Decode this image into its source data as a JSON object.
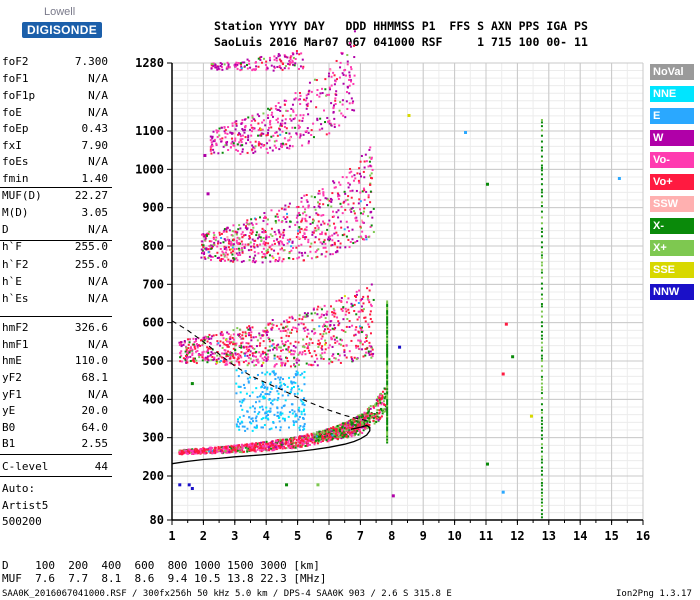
{
  "logo": {
    "top": "Lowell",
    "bottom": "DIGISONDE"
  },
  "header": {
    "line1": "Station YYYY DAY   DDD HHMMSS P1  FFS S AXN PPS IGA PS",
    "line2": "SaoLuis 2016 Mar07 067 041000 RSF     1 715 100 00- 11"
  },
  "params": [
    {
      "name": "foF2",
      "value": "7.300"
    },
    {
      "name": "foF1",
      "value": "N/A"
    },
    {
      "name": "foF1p",
      "value": "N/A"
    },
    {
      "name": "foE",
      "value": "N/A"
    },
    {
      "name": "foEp",
      "value": "0.43"
    },
    {
      "name": "fxI",
      "value": "7.90"
    },
    {
      "name": "foEs",
      "value": "N/A"
    },
    {
      "name": "fmin",
      "value": "1.40"
    },
    {
      "name": "MUF(D)",
      "value": "22.27"
    },
    {
      "name": "M(D)",
      "value": "3.05"
    },
    {
      "name": "D",
      "value": "N/A"
    },
    {
      "name": "h`F",
      "value": "255.0"
    },
    {
      "name": "h`F2",
      "value": "255.0"
    },
    {
      "name": "h`E",
      "value": "N/A"
    },
    {
      "name": "h`Es",
      "value": "N/A"
    },
    {
      "name": "hmF2",
      "value": "326.6"
    },
    {
      "name": "hmF1",
      "value": "N/A"
    },
    {
      "name": "hmE",
      "value": "110.0"
    },
    {
      "name": "yF2",
      "value": "68.1"
    },
    {
      "name": "yF1",
      "value": "N/A"
    },
    {
      "name": "yE",
      "value": "20.0"
    },
    {
      "name": "B0",
      "value": "64.0"
    },
    {
      "name": "B1",
      "value": "2.55"
    },
    {
      "name": "C-level",
      "value": "44"
    }
  ],
  "auto": {
    "label": "Auto:",
    "artist": "Artist5",
    "version": "500200"
  },
  "legend": [
    {
      "label": "NoVal",
      "color": "#9a9a9a"
    },
    {
      "label": "NNE",
      "color": "#00e5ff"
    },
    {
      "label": "E",
      "color": "#2aa8ff"
    },
    {
      "label": "W",
      "color": "#b000a8"
    },
    {
      "label": "Vo-",
      "color": "#ff3bb0"
    },
    {
      "label": "Vo+",
      "color": "#ff1a40"
    },
    {
      "label": "SSW",
      "color": "#ffb0b0"
    },
    {
      "label": "X-",
      "color": "#0a8a0a"
    },
    {
      "label": "X+",
      "color": "#7ec850"
    },
    {
      "label": "SSE",
      "color": "#d8d800"
    },
    {
      "label": "NNW",
      "color": "#1a10c8"
    }
  ],
  "footer": {
    "d_row": "D    100  200  400  600  800 1000 1500 3000 [km]",
    "muf_row": "MUF  7.6  7.7  8.1  8.6  9.4 10.5 13.8 22.3 [MHz]",
    "info": "SAA0K_2016067041000.RSF / 300fx256h 50 kHz 5.0 km / DPS-4 SAA0K 903 / 2.6 S 315.8 E",
    "version": "Ion2Png 1.3.17"
  },
  "chart_data": {
    "type": "scatter",
    "xlim": [
      1,
      16
    ],
    "ylim": [
      80,
      1280
    ],
    "x_ticks": [
      1,
      2,
      3,
      4,
      5,
      6,
      7,
      8,
      9,
      10,
      11,
      12,
      13,
      14,
      15,
      16
    ],
    "y_ticks": [
      80,
      200,
      300,
      400,
      500,
      600,
      700,
      800,
      900,
      1000,
      1100,
      1280
    ],
    "grid": true,
    "legend_position": "right",
    "profile_curve": {
      "x": [
        1.0,
        1.5,
        2.0,
        2.5,
        3.0,
        3.5,
        4.0,
        4.5,
        5.0,
        5.5,
        6.0,
        6.5,
        6.8,
        7.0,
        7.2,
        7.3,
        7.3,
        7.2,
        7.0,
        6.7
      ],
      "y": [
        232,
        238,
        243,
        246,
        250,
        253,
        256,
        260,
        264,
        269,
        275,
        283,
        290,
        297,
        307,
        318,
        327,
        332,
        327,
        322
      ]
    },
    "dashed_curve": {
      "x": [
        1.0,
        1.5,
        2.0,
        2.5,
        3.0,
        3.5,
        4.0,
        4.5,
        5.0,
        5.5,
        6.0,
        6.5,
        7.0,
        7.2
      ],
      "y": [
        605,
        580,
        550,
        518,
        487,
        462,
        443,
        425,
        405,
        388,
        372,
        358,
        348,
        345
      ]
    },
    "traces": [
      {
        "name": "o-trace hop 1",
        "f_start": 1.2,
        "f_end": 7.3,
        "h_start": 262,
        "h_end": 330
      },
      {
        "name": "x-trace hop 1",
        "f_start": 5.5,
        "f_end": 7.8,
        "h_start": 300,
        "h_end": 375
      },
      {
        "name": "hop 2",
        "f_start": 1.2,
        "f_end": 7.4,
        "h_start": 515,
        "h_end": 560
      },
      {
        "name": "hop 3",
        "f_start": 1.9,
        "f_end": 7.4,
        "h_start": 785,
        "h_end": 880
      },
      {
        "name": "hop 4",
        "f_start": 2.2,
        "f_end": 6.8,
        "h_start": 1060,
        "h_end": 1190
      },
      {
        "name": "hop 5",
        "f_start": 2.2,
        "f_end": 5.2,
        "h_start": 1270,
        "h_end": 1280
      }
    ]
  }
}
